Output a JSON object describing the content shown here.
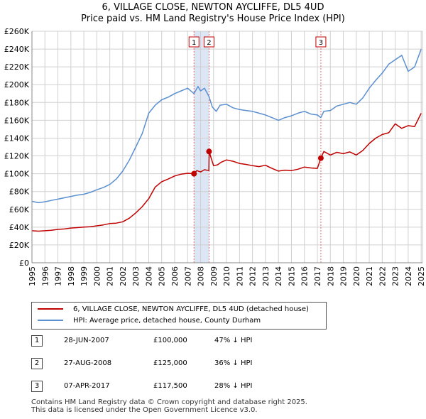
{
  "header": {
    "title": "6, VILLAGE CLOSE, NEWTON AYCLIFFE, DL5 4UD",
    "subtitle": "Price paid vs. HM Land Registry's House Price Index (HPI)"
  },
  "colors": {
    "property": "#c00000",
    "hpi": "#5b8fd0",
    "shade": "#dce6f5",
    "grid": "#d0d0d0",
    "marker_line": "#e07070"
  },
  "chart_data": {
    "type": "line",
    "title": "6, VILLAGE CLOSE, NEWTON AYCLIFFE, DL5 4UD",
    "subtitle": "Price paid vs. HM Land Registry's House Price Index (HPI)",
    "xlim": [
      1995,
      2025.1
    ],
    "ylim": [
      0,
      260000
    ],
    "x_ticks": [
      1995,
      1996,
      1997,
      1998,
      1999,
      2000,
      2001,
      2002,
      2003,
      2004,
      2005,
      2006,
      2007,
      2008,
      2009,
      2010,
      2011,
      2012,
      2013,
      2014,
      2015,
      2016,
      2017,
      2018,
      2019,
      2020,
      2021,
      2022,
      2023,
      2024,
      2025
    ],
    "y_ticks": [
      0,
      20000,
      40000,
      60000,
      80000,
      100000,
      120000,
      140000,
      160000,
      180000,
      200000,
      220000,
      240000,
      260000
    ],
    "y_tick_labels": [
      "£0",
      "£20K",
      "£40K",
      "£60K",
      "£80K",
      "£100K",
      "£120K",
      "£140K",
      "£160K",
      "£180K",
      "£200K",
      "£220K",
      "£240K",
      "£260K"
    ],
    "grid": true,
    "legend_position": "below",
    "shaded_region": [
      2007.49,
      2008.65
    ],
    "series": [
      {
        "name": "6, VILLAGE CLOSE, NEWTON AYCLIFFE, DL5 4UD (detached house)",
        "color": "#c00000",
        "x": [
          1995.0,
          1995.5,
          1996.0,
          1996.5,
          1997.0,
          1997.5,
          1998.0,
          1998.5,
          1999.0,
          1999.5,
          2000.0,
          2000.5,
          2001.0,
          2001.5,
          2002.0,
          2002.5,
          2003.0,
          2003.5,
          2004.0,
          2004.5,
          2005.0,
          2005.5,
          2006.0,
          2006.5,
          2007.0,
          2007.49,
          2007.7,
          2008.0,
          2008.3,
          2008.64,
          2008.66,
          2008.8,
          2009.0,
          2009.3,
          2009.6,
          2010.0,
          2010.5,
          2011.0,
          2011.5,
          2012.0,
          2012.5,
          2013.0,
          2013.5,
          2014.0,
          2014.5,
          2015.0,
          2015.5,
          2016.0,
          2016.5,
          2017.0,
          2017.27,
          2017.5,
          2018.0,
          2018.5,
          2019.0,
          2019.5,
          2020.0,
          2020.5,
          2021.0,
          2021.5,
          2022.0,
          2022.5,
          2023.0,
          2023.5,
          2024.0,
          2024.5,
          2025.0
        ],
        "y": [
          36000,
          35500,
          36000,
          36500,
          37500,
          38000,
          39000,
          39500,
          40000,
          40500,
          41500,
          42500,
          44000,
          44500,
          46000,
          50000,
          56000,
          63000,
          72000,
          85000,
          91000,
          94000,
          97500,
          99500,
          100500,
          100000,
          103500,
          102000,
          104500,
          103500,
          125000,
          118000,
          109000,
          110000,
          113000,
          115500,
          114000,
          111500,
          110500,
          109000,
          108000,
          109500,
          106000,
          103000,
          104000,
          103500,
          105000,
          107500,
          106500,
          106000,
          117500,
          125000,
          121000,
          124000,
          122500,
          124500,
          121000,
          126000,
          134000,
          140000,
          144000,
          146000,
          156000,
          151000,
          154000,
          153000,
          168000
        ]
      },
      {
        "name": "HPI: Average price, detached house, County Durham",
        "color": "#5b8fd0",
        "x": [
          1995.0,
          1995.5,
          1996.0,
          1996.5,
          1997.0,
          1997.5,
          1998.0,
          1998.5,
          1999.0,
          1999.5,
          2000.0,
          2000.5,
          2001.0,
          2001.5,
          2002.0,
          2002.5,
          2003.0,
          2003.5,
          2004.0,
          2004.5,
          2005.0,
          2005.5,
          2006.0,
          2006.5,
          2007.0,
          2007.49,
          2007.8,
          2008.0,
          2008.3,
          2008.64,
          2008.9,
          2009.2,
          2009.5,
          2010.0,
          2010.5,
          2011.0,
          2011.5,
          2012.0,
          2012.5,
          2013.0,
          2013.5,
          2014.0,
          2014.5,
          2015.0,
          2015.5,
          2016.0,
          2016.5,
          2017.0,
          2017.27,
          2017.5,
          2018.0,
          2018.5,
          2019.0,
          2019.5,
          2020.0,
          2020.5,
          2021.0,
          2021.5,
          2022.0,
          2022.5,
          2023.0,
          2023.5,
          2024.0,
          2024.5,
          2025.0
        ],
        "y": [
          69000,
          67500,
          68500,
          70000,
          71500,
          73000,
          74500,
          76000,
          77000,
          79000,
          82000,
          84500,
          88000,
          94000,
          103000,
          115000,
          130000,
          145000,
          168000,
          177000,
          183000,
          186000,
          190000,
          193000,
          196000,
          190000,
          198000,
          193000,
          196000,
          187000,
          175000,
          170000,
          177000,
          178000,
          174000,
          172000,
          171000,
          170000,
          168000,
          166000,
          163000,
          160000,
          163000,
          165000,
          168000,
          170000,
          167000,
          166000,
          163000,
          170000,
          171000,
          176000,
          178000,
          180000,
          178000,
          185000,
          196000,
          205000,
          213000,
          223000,
          228000,
          233000,
          215000,
          220000,
          240000
        ]
      }
    ],
    "sale_markers": [
      {
        "label": "1",
        "x": 2007.49,
        "y": 100000
      },
      {
        "label": "2",
        "x": 2008.65,
        "y": 125000
      },
      {
        "label": "3",
        "x": 2017.27,
        "y": 117500
      }
    ]
  },
  "legend": {
    "property_label": "6, VILLAGE CLOSE, NEWTON AYCLIFFE, DL5 4UD (detached house)",
    "hpi_label": "HPI: Average price, detached house, County Durham"
  },
  "sales": [
    {
      "num": "1",
      "date": "28-JUN-2007",
      "price": "£100,000",
      "hpi": "47% ↓ HPI"
    },
    {
      "num": "2",
      "date": "27-AUG-2008",
      "price": "£125,000",
      "hpi": "36% ↓ HPI"
    },
    {
      "num": "3",
      "date": "07-APR-2017",
      "price": "£117,500",
      "hpi": "28% ↓ HPI"
    }
  ],
  "footer": {
    "line1": "Contains HM Land Registry data © Crown copyright and database right 2025.",
    "line2": "This data is licensed under the Open Government Licence v3.0."
  }
}
